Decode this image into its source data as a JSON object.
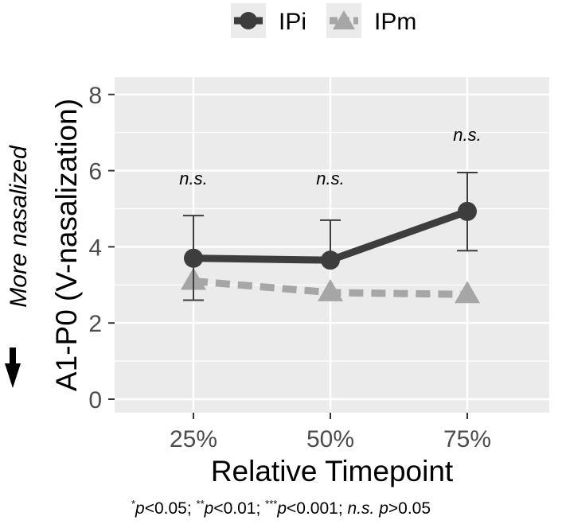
{
  "chart_data": {
    "type": "line",
    "categories": [
      "25%",
      "50%",
      "75%"
    ],
    "xlabel": "Relative Timepoint",
    "ylabel": "A1-P0 (V-nasalization)",
    "ylim": [
      0,
      8
    ],
    "yticks": [
      0,
      2,
      4,
      6,
      8
    ],
    "grid": true,
    "legend_position": "top",
    "series": [
      {
        "name": "IPi",
        "values": [
          3.7,
          3.65,
          4.93
        ],
        "error_lower": [
          2.6,
          null,
          3.9
        ],
        "error_upper": [
          4.82,
          4.7,
          5.95
        ],
        "color": "#3d3d3d",
        "line_style": "solid",
        "marker": "circle"
      },
      {
        "name": "IPm",
        "values": [
          3.1,
          2.8,
          2.75
        ],
        "color": "#a6a6a6",
        "line_style": "dashed",
        "marker": "triangle"
      }
    ],
    "annotations": [
      {
        "x": "25%",
        "y": 5.8,
        "text": "n.s."
      },
      {
        "x": "50%",
        "y": 5.8,
        "text": "n.s."
      },
      {
        "x": "75%",
        "y": 6.95,
        "text": "n.s."
      }
    ],
    "side_note": "More nasalized",
    "panel_color": "#ebebeb",
    "grid_color": "#ffffff"
  },
  "footnote": {
    "s1": "*",
    "t1": "p",
    "t2": "<0.05; ",
    "s2": "**",
    "t3": "p",
    "t4": "<0.01; ",
    "s3": "***",
    "t5": "p",
    "t6": "<0.001; ",
    "t7": "n.s. p",
    "t8": ">0.05"
  }
}
